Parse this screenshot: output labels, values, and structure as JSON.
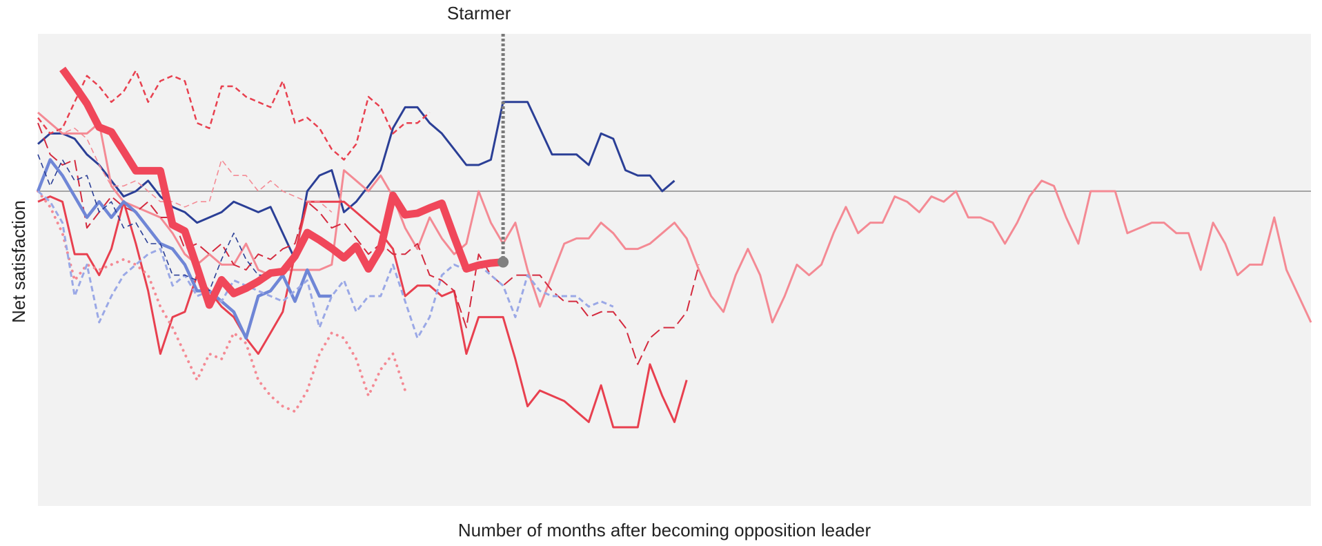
{
  "chart_data": {
    "type": "line",
    "xlabel": "Number of months after becoming opposition leader",
    "ylabel": "Net satisfaction",
    "xlim": [
      0,
      104
    ],
    "ylim": [
      -60,
      30
    ],
    "background": "#f2f2f2",
    "series": [
      {
        "name": "Starmer",
        "color": "#f0475a",
        "width": 11,
        "dash": "solid",
        "values": [
          null,
          null,
          23.3,
          20.1,
          16.7,
          12.2,
          11.3,
          7.6,
          3.9,
          3.9,
          3.9,
          -6.4,
          -7.6,
          -14.5,
          -21.7,
          -16.9,
          -19.5,
          -18.5,
          -17.2,
          -15.6,
          -15.3,
          -12.4,
          -7.9,
          -9.3,
          -10.9,
          -12.7,
          -10.5,
          -14.8,
          -10.9,
          -0.8,
          -4.5,
          -4.2,
          -3.2,
          -2.3,
          -8.7,
          -14.8,
          -14.1,
          -13.7,
          -13.5
        ]
      },
      {
        "color": "#2b3f96",
        "width": 3,
        "dash": "solid",
        "values": [
          9,
          11,
          11,
          10,
          7,
          5,
          2,
          -1,
          0,
          2,
          -1,
          -3,
          -4,
          -6,
          -5,
          -4,
          -2,
          -3,
          -4,
          -3,
          -8,
          -13,
          0,
          3,
          4,
          -4,
          -2,
          1,
          4,
          12,
          16,
          16,
          13,
          11,
          8,
          5,
          5,
          6,
          17,
          17,
          17,
          12,
          7,
          7,
          7,
          5,
          11,
          10,
          4,
          3,
          3,
          0,
          2
        ]
      },
      {
        "color": "#f48a94",
        "width": 3,
        "dash": "solid",
        "values": [
          15,
          13,
          11,
          11,
          11,
          13,
          1,
          -2,
          -3,
          -4,
          -5,
          -8,
          -12,
          -14,
          -12,
          -14,
          -14,
          -10,
          -15,
          -16,
          -15,
          -15,
          -15,
          -15,
          -14,
          4,
          2,
          0,
          3,
          -1,
          -7,
          -11,
          -5,
          -9,
          -12,
          -10,
          0,
          -6,
          -10,
          -6,
          -15,
          -22,
          -16,
          -10,
          -9,
          -9,
          -6,
          -8,
          -11,
          -11,
          -10,
          -8,
          -6,
          -9,
          -15,
          -20,
          -23,
          -16,
          -11,
          -16,
          -25,
          -20,
          -14,
          -16,
          -14,
          -8,
          -3,
          -8,
          -6,
          -6,
          -1,
          -2,
          -4,
          -1,
          -2,
          0,
          -5,
          -5,
          -6,
          -10,
          -6,
          -1,
          2,
          1,
          -5,
          -10,
          0,
          0,
          0,
          -8,
          -7,
          -6,
          -6,
          -8,
          -8,
          -15,
          -6,
          -10,
          -16,
          -14,
          -14,
          -5,
          -15,
          -20,
          -25
        ]
      },
      {
        "color": "#e8404f",
        "width": 3,
        "dash": "solid",
        "values": [
          -2,
          -1,
          -2,
          -12,
          -12,
          -16,
          -11,
          -2,
          -10,
          -19,
          -31,
          -24,
          -23,
          -16,
          -19,
          -22,
          -24,
          -28,
          -31,
          -27,
          -23,
          -12,
          -2,
          -2,
          -2,
          -2,
          -4,
          -6,
          -8,
          -11,
          -20,
          -18,
          -18,
          -20,
          -19,
          -31,
          -24,
          -24,
          -24,
          -32,
          -41,
          -38,
          -39,
          -40,
          -42,
          -44,
          -37,
          -45,
          -45,
          -45,
          -33,
          -39,
          -44,
          -36
        ]
      },
      {
        "color": "#e8404f",
        "width": 2.5,
        "dash": "dashed",
        "values": [
          14,
          11,
          12,
          17,
          22,
          20,
          17,
          19,
          23,
          17,
          21,
          22,
          21,
          13,
          12,
          20,
          20,
          18,
          17,
          16,
          21,
          13,
          14,
          12,
          8,
          6,
          9,
          18,
          16,
          11,
          13,
          13,
          15
        ]
      },
      {
        "color": "#d42a3e",
        "width": 2,
        "dash": "longdash",
        "values": [
          13,
          7,
          5,
          6,
          -7,
          -4,
          -1,
          -3,
          -4,
          -2,
          -5,
          -5,
          -11,
          -10,
          -12,
          -10,
          -14,
          -15,
          -12,
          -13,
          -11,
          -10,
          -2,
          -4,
          -7,
          -6,
          -9,
          -12,
          -10,
          -12,
          -12,
          -10,
          -16,
          -17,
          -19,
          -26,
          -12,
          -16,
          -18,
          -16,
          -16,
          -16,
          -19,
          -21,
          -21,
          -24,
          -23,
          -23,
          -26,
          -33,
          -28,
          -26,
          -26,
          -23,
          -14
        ]
      },
      {
        "color": "#f48a94",
        "width": 1.6,
        "dash": "dashed",
        "values": [
          15,
          13,
          11,
          12,
          10,
          5,
          1,
          1,
          2,
          0,
          -2,
          -2,
          -3,
          -2,
          -2,
          6,
          3,
          3,
          0,
          2,
          0,
          -1,
          -2,
          -2,
          -4
        ]
      },
      {
        "color": "#f48a94",
        "width": 4,
        "dash": "dotted",
        "values": [
          0,
          -3,
          -8,
          -17,
          -14,
          -15,
          -14,
          -13,
          -14,
          -16,
          -22,
          -26,
          -31,
          -36,
          -31,
          -32,
          -27,
          -29,
          -36,
          -39,
          -41,
          -42,
          -38,
          -31,
          -27,
          -28,
          -32,
          -39,
          -34,
          -31,
          -38
        ]
      },
      {
        "color": "#6f86d6",
        "width": 4.5,
        "dash": "solid",
        "values": [
          0,
          6,
          3,
          -1,
          -5,
          -2,
          -5,
          -2,
          -4,
          -7,
          -10,
          -11,
          -14,
          -19,
          -19,
          -21,
          -23,
          -28,
          -20,
          -19,
          -16,
          -21,
          -15,
          -20,
          -20
        ]
      },
      {
        "color": "#9aa8e6",
        "width": 3,
        "dash": "dashed",
        "values": [
          0,
          -2,
          -6,
          -20,
          -14,
          -25,
          -20,
          -16,
          -14,
          -12,
          -11,
          -18,
          -16,
          -20,
          -19,
          -21,
          -17,
          -18,
          -19,
          -20,
          -21,
          -19,
          -17,
          -26,
          -20,
          -17,
          -23,
          -20,
          -20,
          -14,
          -21,
          -28,
          -24,
          -16,
          -14,
          -15,
          -14,
          -16,
          -18,
          -24,
          -16,
          -19,
          -20,
          -20,
          -20,
          -22,
          -21,
          -22
        ]
      },
      {
        "color": "#2b3f96",
        "width": 1.6,
        "dash": "dashed",
        "values": [
          7,
          1,
          6,
          2,
          3,
          -4,
          -2,
          -7,
          -6,
          -10,
          -10,
          -16,
          -16,
          -17,
          -19,
          -13,
          -8,
          -13,
          -16,
          -16,
          -15,
          -12
        ]
      }
    ]
  }
}
